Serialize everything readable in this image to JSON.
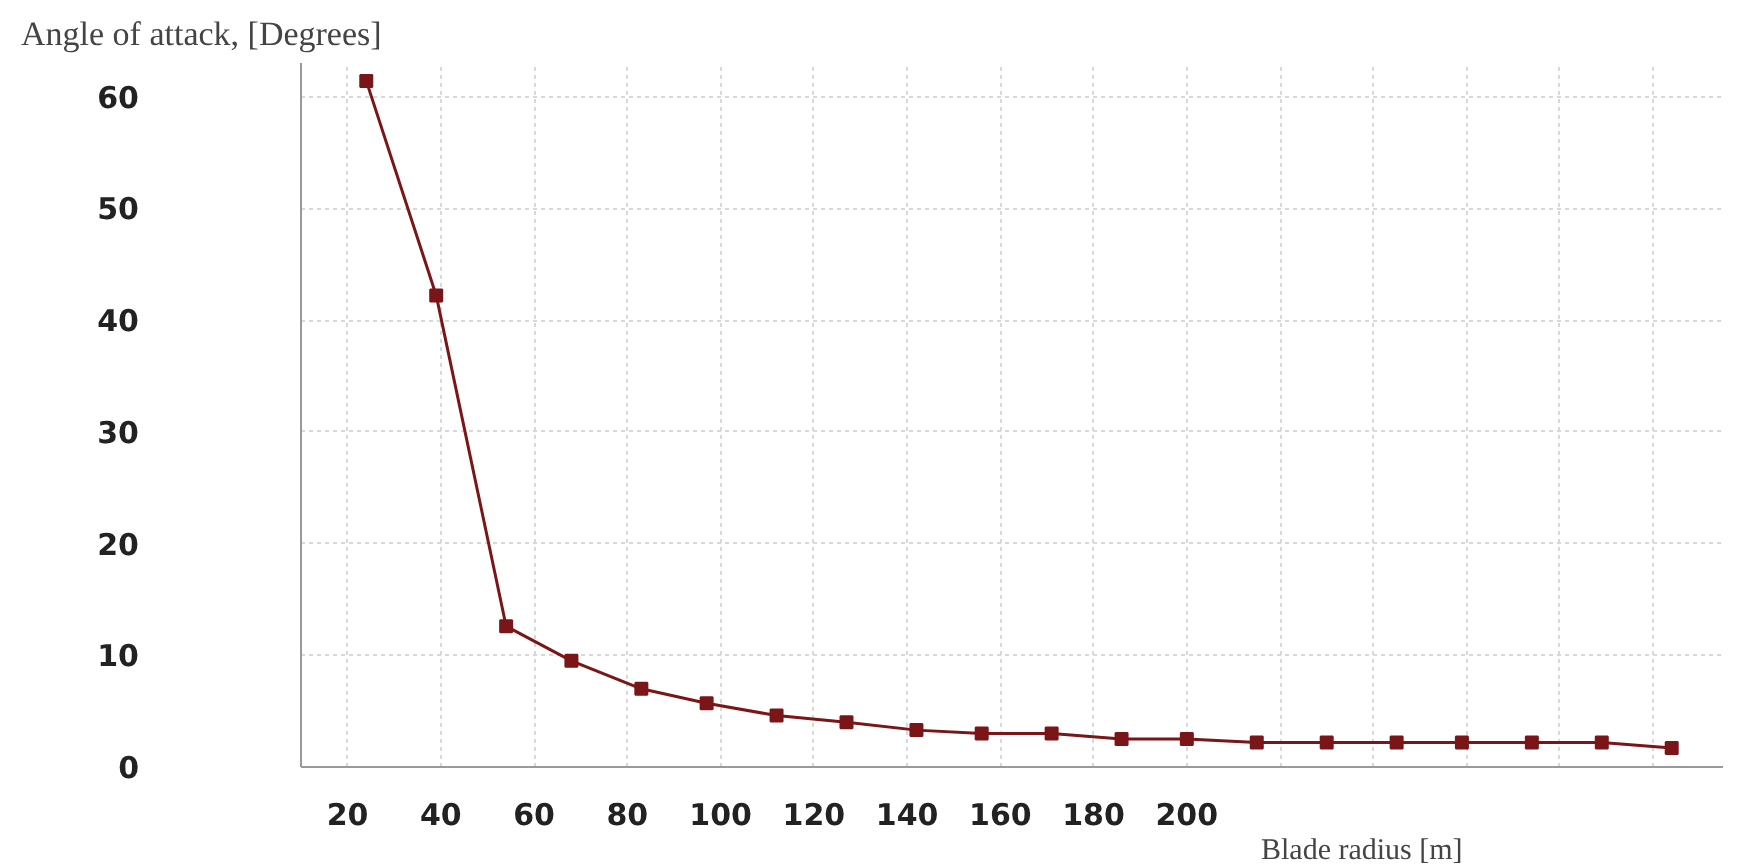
{
  "chart_data": {
    "type": "line",
    "ylabel": "Angle of attack, [Degrees]",
    "xlabel": "Blade radius [m]",
    "x": [
      24,
      39,
      54,
      68,
      83,
      97,
      112,
      127,
      142,
      156,
      171,
      186,
      200,
      215,
      230,
      245,
      259,
      274,
      289,
      304
    ],
    "series": [
      {
        "color": "#7a1518",
        "values": [
          61.4,
          42.2,
          12.6,
          9.5,
          7.0,
          5.7,
          4.6,
          4.0,
          3.3,
          3.0,
          3.0,
          2.5,
          2.5,
          2.2,
          2.2,
          2.2,
          2.2,
          2.2,
          2.2,
          1.7
        ]
      }
    ],
    "xlim": [
      10,
      315
    ],
    "ylim": [
      0,
      63
    ],
    "xticks": [
      20,
      40,
      60,
      80,
      100,
      120,
      140,
      160,
      180,
      200,
      {
        "value": 220,
        "label": null
      },
      {
        "value": 240,
        "label": null
      },
      {
        "value": 260,
        "label": null
      },
      {
        "value": 280,
        "label": null
      },
      {
        "value": 300,
        "label": null
      }
    ],
    "yticks": [
      0,
      10,
      20,
      30,
      40,
      50,
      60
    ],
    "grid": true,
    "marker": "square",
    "line_style": "solid"
  }
}
